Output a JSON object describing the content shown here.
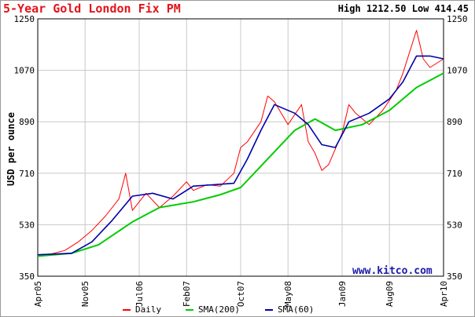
{
  "title": "5-Year Gold London Fix PM",
  "high_label": "High",
  "high_value": "1212.50",
  "low_label": "Low",
  "low_value": "414.45",
  "watermark": "www.kitco.com",
  "colors": {
    "title": "#e4141b",
    "daily": "#ff0000",
    "sma200": "#00cc00",
    "sma60": "#0000aa",
    "grid": "#c8c8c8",
    "watermark": "#1a1aa8"
  },
  "chart_data": {
    "type": "line",
    "title": "5-Year Gold London Fix PM",
    "ylabel": "USD per ounce",
    "xlabel": "",
    "ylim": [
      350,
      1250
    ],
    "yticks": [
      350,
      530,
      710,
      890,
      1070,
      1250
    ],
    "xlim": [
      "2005-04",
      "2010-04"
    ],
    "xticks": [
      "Apr05",
      "Nov05",
      "Jul06",
      "Feb07",
      "Oct07",
      "May08",
      "Jan09",
      "Aug09",
      "Apr10"
    ],
    "grid": true,
    "legend_position": "bottom",
    "series": [
      {
        "name": "Daily",
        "x": [
          "2005-04",
          "2005-06",
          "2005-08",
          "2005-10",
          "2005-12",
          "2006-02",
          "2006-04",
          "2006-05",
          "2006-06",
          "2006-08",
          "2006-10",
          "2006-12",
          "2007-02",
          "2007-03",
          "2007-05",
          "2007-07",
          "2007-09",
          "2007-10",
          "2007-11",
          "2008-01",
          "2008-02",
          "2008-03",
          "2008-05",
          "2008-07",
          "2008-08",
          "2008-09",
          "2008-10",
          "2008-11",
          "2009-01",
          "2009-02",
          "2009-03",
          "2009-05",
          "2009-07",
          "2009-09",
          "2009-10",
          "2009-12",
          "2010-01",
          "2010-02",
          "2010-04"
        ],
        "y": [
          425,
          428,
          440,
          470,
          510,
          560,
          620,
          710,
          580,
          640,
          590,
          630,
          680,
          650,
          670,
          665,
          710,
          800,
          820,
          890,
          980,
          960,
          880,
          950,
          820,
          780,
          720,
          740,
          850,
          950,
          920,
          880,
          930,
          1000,
          1060,
          1210,
          1110,
          1080,
          1110
        ]
      },
      {
        "name": "SMA(200)",
        "x": [
          "2005-04",
          "2005-09",
          "2006-01",
          "2006-06",
          "2006-10",
          "2007-03",
          "2007-07",
          "2007-10",
          "2008-02",
          "2008-06",
          "2008-09",
          "2008-12",
          "2009-04",
          "2009-08",
          "2009-12",
          "2010-04"
        ],
        "y": [
          420,
          430,
          460,
          540,
          590,
          610,
          635,
          660,
          760,
          860,
          900,
          860,
          880,
          930,
          1010,
          1060
        ]
      },
      {
        "name": "SMA(60)",
        "x": [
          "2005-04",
          "2005-09",
          "2005-12",
          "2006-03",
          "2006-06",
          "2006-09",
          "2006-12",
          "2007-03",
          "2007-06",
          "2007-09",
          "2007-11",
          "2008-01",
          "2008-03",
          "2008-06",
          "2008-08",
          "2008-10",
          "2008-12",
          "2009-02",
          "2009-05",
          "2009-08",
          "2009-10",
          "2009-12",
          "2010-02",
          "2010-04"
        ],
        "y": [
          425,
          430,
          470,
          545,
          630,
          640,
          620,
          665,
          670,
          675,
          760,
          860,
          950,
          920,
          880,
          810,
          800,
          890,
          920,
          970,
          1030,
          1120,
          1120,
          1110
        ]
      }
    ]
  }
}
